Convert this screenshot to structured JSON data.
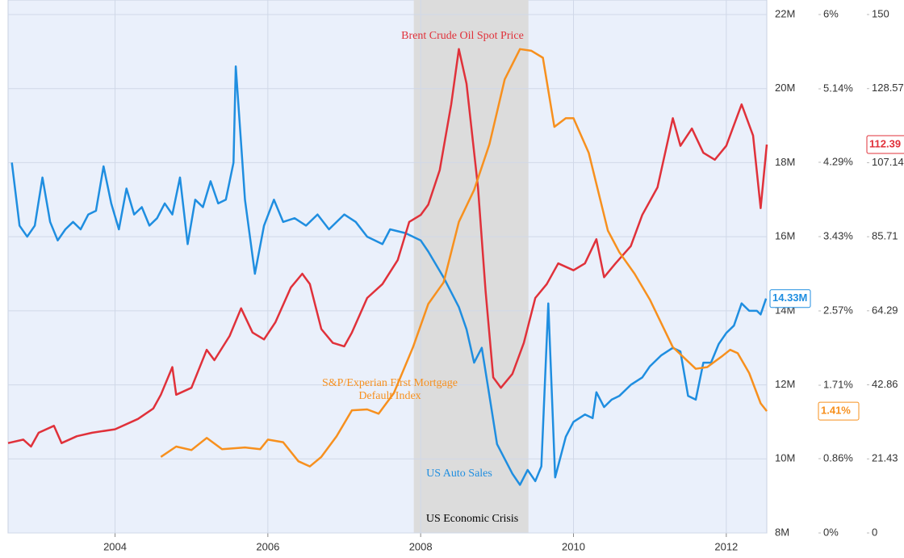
{
  "chart_data": {
    "type": "line",
    "xlim": [
      2002.6,
      2012.53
    ],
    "xticks": [
      2004,
      2006,
      2008,
      2010,
      2012
    ],
    "ylim": [
      8,
      22
    ],
    "yticks": [
      {
        "value": 8,
        "label": "8M"
      },
      {
        "value": 10,
        "label": "10M"
      },
      {
        "value": 12,
        "label": "12M"
      },
      {
        "value": 14,
        "label": "14M"
      },
      {
        "value": 16,
        "label": "16M"
      },
      {
        "value": 18,
        "label": "18M"
      },
      {
        "value": 20,
        "label": "20M"
      },
      {
        "value": 22,
        "label": "22M"
      }
    ],
    "y2lim": [
      0,
      6
    ],
    "y2ticks": [
      {
        "value": 0,
        "label": "0%"
      },
      {
        "value": 0.86,
        "label": "0.86%"
      },
      {
        "value": 1.71,
        "label": "1.71%"
      },
      {
        "value": 2.57,
        "label": "2.57%"
      },
      {
        "value": 3.43,
        "label": "3.43%"
      },
      {
        "value": 4.29,
        "label": "4.29%"
      },
      {
        "value": 5.14,
        "label": "5.14%"
      },
      {
        "value": 6,
        "label": "6%"
      }
    ],
    "y3lim": [
      0,
      150
    ],
    "y3ticks": [
      0,
      21.43,
      42.86,
      64.29,
      85.71,
      107.14,
      128.57,
      150
    ],
    "grid": true,
    "shaded_region": {
      "label": "US Economic Crisis",
      "x": [
        2007.91,
        2009.41
      ]
    },
    "series": [
      {
        "name": "US Auto Sales",
        "color": "#1f8ee0",
        "axis": "y",
        "x": [
          2002.65,
          2002.75,
          2002.85,
          2002.95,
          2003.05,
          2003.15,
          2003.25,
          2003.35,
          2003.45,
          2003.55,
          2003.65,
          2003.75,
          2003.85,
          2003.95,
          2004.05,
          2004.15,
          2004.25,
          2004.35,
          2004.45,
          2004.55,
          2004.65,
          2004.75,
          2004.85,
          2004.95,
          2005.05,
          2005.15,
          2005.25,
          2005.35,
          2005.45,
          2005.55,
          2005.58,
          2005.7,
          2005.83,
          2005.95,
          2006.08,
          2006.2,
          2006.35,
          2006.5,
          2006.65,
          2006.8,
          2007.0,
          2007.15,
          2007.3,
          2007.5,
          2007.6,
          2007.8,
          2008.0,
          2008.1,
          2008.3,
          2008.5,
          2008.6,
          2008.7,
          2008.8,
          2008.9,
          2009.0,
          2009.1,
          2009.2,
          2009.3,
          2009.4,
          2009.5,
          2009.58,
          2009.67,
          2009.76,
          2009.9,
          2010.0,
          2010.15,
          2010.25,
          2010.3,
          2010.4,
          2010.5,
          2010.6,
          2010.75,
          2010.9,
          2011.0,
          2011.15,
          2011.3,
          2011.4,
          2011.5,
          2011.6,
          2011.7,
          2011.8,
          2011.9,
          2012.0,
          2012.1,
          2012.2,
          2012.3,
          2012.4,
          2012.45,
          2012.52
        ],
        "values": [
          18.0,
          16.3,
          16.0,
          16.3,
          17.6,
          16.4,
          15.9,
          16.2,
          16.4,
          16.2,
          16.6,
          16.7,
          17.9,
          16.9,
          16.2,
          17.3,
          16.6,
          16.8,
          16.3,
          16.5,
          16.9,
          16.6,
          17.6,
          15.8,
          17.0,
          16.8,
          17.5,
          16.9,
          17.0,
          18.0,
          20.6,
          17.0,
          15.0,
          16.3,
          17.0,
          16.4,
          16.5,
          16.3,
          16.6,
          16.2,
          16.6,
          16.4,
          16.0,
          15.8,
          16.2,
          16.1,
          15.9,
          15.6,
          14.9,
          14.1,
          13.5,
          12.6,
          13.0,
          11.7,
          10.4,
          10.0,
          9.6,
          9.3,
          9.7,
          9.4,
          9.8,
          14.2,
          9.5,
          10.6,
          11.0,
          11.2,
          11.1,
          11.8,
          11.4,
          11.6,
          11.7,
          12.0,
          12.2,
          12.5,
          12.8,
          13.0,
          12.9,
          11.7,
          11.6,
          12.6,
          12.6,
          13.1,
          13.4,
          13.6,
          14.2,
          14.0,
          14.0,
          13.9,
          14.33
        ],
        "value_labels": [
          null,
          null,
          null,
          null,
          null,
          null,
          null,
          null,
          null,
          null,
          null,
          null,
          null,
          null,
          null,
          null,
          null,
          null,
          null,
          null,
          null,
          null,
          null,
          null,
          null,
          null,
          null,
          null,
          null,
          null,
          null,
          null,
          null,
          null,
          null,
          null,
          null,
          null,
          null,
          null,
          null,
          null,
          null,
          null,
          null,
          null,
          null,
          null,
          null,
          null,
          null,
          null,
          null,
          null,
          null,
          null,
          null,
          null,
          null,
          null,
          null,
          null,
          null,
          null,
          null,
          null,
          null,
          null,
          null,
          null,
          null,
          null,
          null,
          null,
          null,
          null,
          null,
          null,
          null,
          null,
          null,
          null,
          null,
          null,
          null,
          null,
          null,
          null,
          "14.33M"
        ]
      },
      {
        "name": "Brent Crude Oil Spot Price",
        "color": "#e0313a",
        "axis": "y3",
        "x": [
          2002.6,
          2002.8,
          2002.9,
          2003.0,
          2003.2,
          2003.3,
          2003.5,
          2003.7,
          2004.0,
          2004.3,
          2004.5,
          2004.6,
          2004.75,
          2004.8,
          2005.0,
          2005.2,
          2005.3,
          2005.5,
          2005.65,
          2005.8,
          2005.95,
          2006.1,
          2006.3,
          2006.45,
          2006.55,
          2006.7,
          2006.85,
          2007.0,
          2007.1,
          2007.3,
          2007.5,
          2007.7,
          2007.85,
          2008.0,
          2008.1,
          2008.25,
          2008.4,
          2008.5,
          2008.6,
          2008.75,
          2008.85,
          2008.95,
          2009.05,
          2009.2,
          2009.35,
          2009.5,
          2009.65,
          2009.8,
          2010.0,
          2010.15,
          2010.3,
          2010.4,
          2010.55,
          2010.75,
          2010.9,
          2011.1,
          2011.3,
          2011.4,
          2011.55,
          2011.7,
          2011.85,
          2012.0,
          2012.2,
          2012.35,
          2012.45,
          2012.53
        ],
        "values": [
          26,
          27,
          25,
          29,
          31,
          26,
          28,
          29,
          30,
          33,
          36,
          40,
          48,
          40,
          42,
          53,
          50,
          57,
          65,
          58,
          56,
          61,
          71,
          75,
          72,
          59,
          55,
          54,
          58,
          68,
          72,
          79,
          90,
          92,
          95,
          105,
          124,
          140,
          130,
          100,
          70,
          45,
          42,
          46,
          55,
          68,
          72,
          78,
          76,
          78,
          85,
          74,
          78,
          83,
          92,
          100,
          120,
          112,
          117,
          110,
          108,
          112,
          124,
          115,
          94,
          112.39
        ],
        "value_labels": [
          null,
          null,
          null,
          null,
          null,
          null,
          null,
          null,
          null,
          null,
          null,
          null,
          null,
          null,
          null,
          null,
          null,
          null,
          null,
          null,
          null,
          null,
          null,
          null,
          null,
          null,
          null,
          null,
          null,
          null,
          null,
          null,
          null,
          null,
          null,
          null,
          null,
          null,
          null,
          null,
          null,
          null,
          null,
          null,
          null,
          null,
          null,
          null,
          null,
          null,
          null,
          null,
          null,
          null,
          null,
          null,
          null,
          null,
          null,
          null,
          null,
          null,
          null,
          null,
          null,
          "112.39"
        ]
      },
      {
        "name": "S&P/Experian First Mortgage Default Index",
        "color": "#f7901e",
        "axis": "y2",
        "x": [
          2004.6,
          2004.8,
          2005.0,
          2005.2,
          2005.4,
          2005.7,
          2005.9,
          2006.0,
          2006.2,
          2006.4,
          2006.55,
          2006.7,
          2006.9,
          2007.1,
          2007.3,
          2007.45,
          2007.65,
          2007.9,
          2008.1,
          2008.3,
          2008.5,
          2008.7,
          2008.9,
          2009.1,
          2009.3,
          2009.45,
          2009.6,
          2009.75,
          2009.9,
          2010.0,
          2010.2,
          2010.45,
          2010.6,
          2010.8,
          2011.0,
          2011.3,
          2011.6,
          2011.75,
          2011.95,
          2012.05,
          2012.15,
          2012.3,
          2012.45,
          2012.53
        ],
        "values": [
          0.88,
          1.0,
          0.96,
          1.1,
          0.97,
          0.99,
          0.97,
          1.08,
          1.05,
          0.83,
          0.77,
          0.88,
          1.12,
          1.42,
          1.43,
          1.38,
          1.62,
          2.15,
          2.65,
          2.9,
          3.6,
          3.97,
          4.5,
          5.25,
          5.6,
          5.58,
          5.5,
          4.7,
          4.8,
          4.8,
          4.4,
          3.5,
          3.25,
          3.0,
          2.7,
          2.15,
          1.9,
          1.92,
          2.05,
          2.12,
          2.08,
          1.85,
          1.5,
          1.41
        ],
        "value_labels": [
          null,
          null,
          null,
          null,
          null,
          null,
          null,
          null,
          null,
          null,
          null,
          null,
          null,
          null,
          null,
          null,
          null,
          null,
          null,
          null,
          null,
          null,
          null,
          null,
          null,
          null,
          null,
          null,
          null,
          null,
          null,
          null,
          null,
          null,
          null,
          null,
          null,
          null,
          null,
          null,
          null,
          null,
          null,
          "1.41%"
        ]
      }
    ]
  }
}
